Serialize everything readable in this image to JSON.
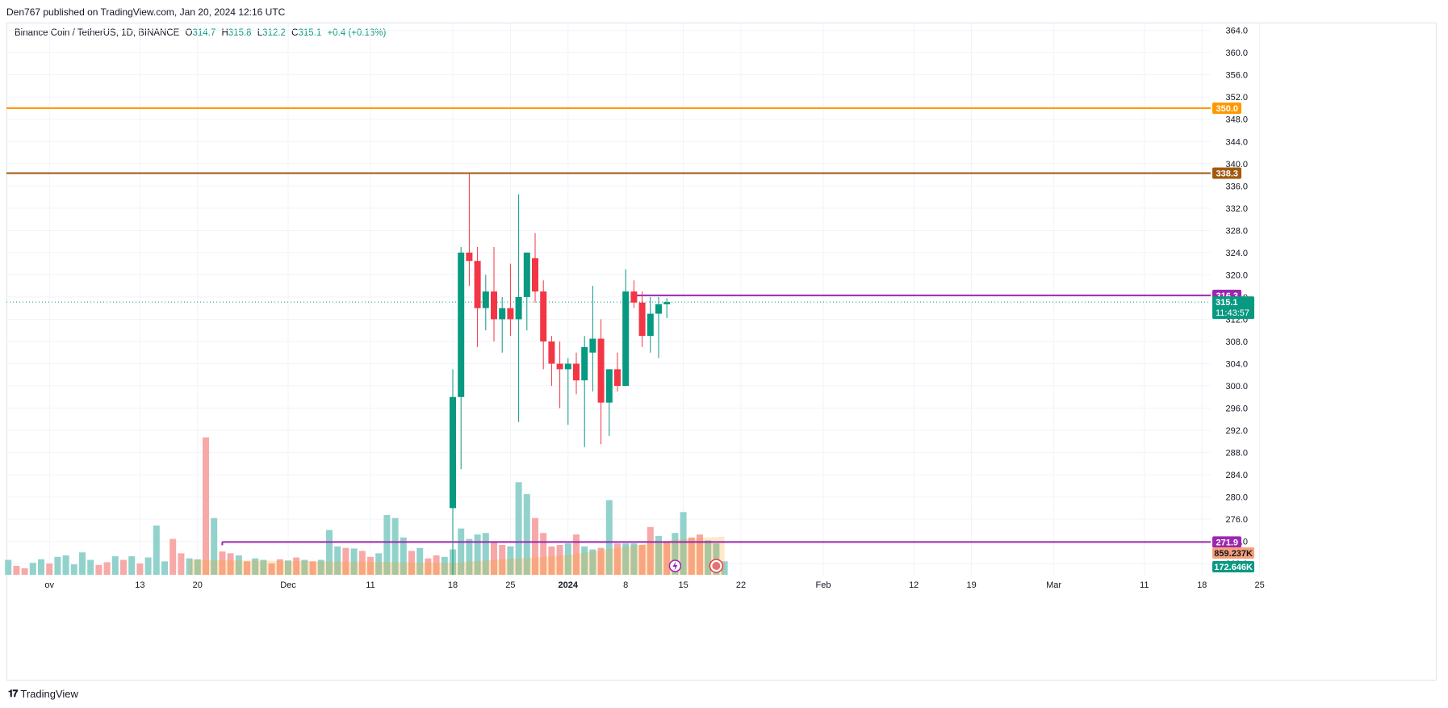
{
  "header": {
    "publisher_line": "Den767 published on TradingView.com, Jan 20, 2024 12:16 UTC"
  },
  "legend": {
    "symbol": "Binance Coin / TetherUS, 1D, BINANCE",
    "o_label": "O",
    "o_value": "314.7",
    "h_label": "H",
    "h_value": "315.8",
    "l_label": "L",
    "l_value": "312.2",
    "c_label": "C",
    "c_value": "315.1",
    "change": "+0.4 (+0.13%)"
  },
  "footer": {
    "logo_text": "TradingView"
  },
  "colors": {
    "up": "#089981",
    "down": "#f23645",
    "vol_up": "#92d2cc",
    "vol_down": "#f7a9a7",
    "orange": "#ff9800",
    "brown": "#a0590f",
    "purple": "#9c27b0",
    "grid": "#f0f3fa"
  },
  "chart_data": {
    "type": "candlestick",
    "symbol": "Binance Coin / TetherUS, 1D, BINANCE",
    "y_range": [
      266.0,
      365.4
    ],
    "y_ticks": [
      "364.0",
      "360.0",
      "356.0",
      "352.0",
      "348.0",
      "344.0",
      "340.0",
      "336.0",
      "332.0",
      "328.0",
      "324.0",
      "320.0",
      "316.0",
      "312.0",
      "308.0",
      "304.0",
      "300.0",
      "296.0",
      "292.0",
      "288.0",
      "284.0",
      "280.0",
      "276.0",
      "272.0",
      "268.0"
    ],
    "x_ticks": [
      "ov",
      "13",
      "20",
      "Dec",
      "11",
      "18",
      "25",
      "2024",
      "8",
      "15",
      "22",
      "Feb",
      "12",
      "19",
      "Mar",
      "11",
      "18",
      "25"
    ],
    "x_tick_days": [
      -49,
      -38,
      -31,
      -20,
      -10,
      0,
      7,
      14,
      21,
      28,
      35,
      45,
      56,
      63,
      73,
      84,
      91,
      98
    ],
    "candles": [
      {
        "date": "Dec 25",
        "o": 278.0,
        "h": 303.0,
        "l": 266.0,
        "c": 298.0
      },
      {
        "date": "Dec 26",
        "o": 298.0,
        "h": 325.0,
        "l": 285.0,
        "c": 324.0
      },
      {
        "date": "Dec 27",
        "o": 324.0,
        "h": 338.3,
        "l": 318.0,
        "c": 322.5
      },
      {
        "date": "Dec 28",
        "o": 322.5,
        "h": 325.0,
        "l": 307.0,
        "c": 314.0
      },
      {
        "date": "Dec 29",
        "o": 314.0,
        "h": 320.0,
        "l": 310.0,
        "c": 317.0
      },
      {
        "date": "Dec 30",
        "o": 317.0,
        "h": 325.0,
        "l": 308.0,
        "c": 312.0
      },
      {
        "date": "Dec 31",
        "o": 312.0,
        "h": 316.0,
        "l": 306.0,
        "c": 314.0
      },
      {
        "date": "Jan 1",
        "o": 314.0,
        "h": 322.0,
        "l": 309.0,
        "c": 312.0
      },
      {
        "date": "Jan 2",
        "o": 312.0,
        "h": 334.5,
        "l": 293.5,
        "c": 316.0
      },
      {
        "date": "Jan 3",
        "o": 316.0,
        "h": 324.0,
        "l": 310.0,
        "c": 324.0
      },
      {
        "date": "Jan 4",
        "o": 323.0,
        "h": 327.5,
        "l": 315.0,
        "c": 317.0
      },
      {
        "date": "Jan 5",
        "o": 317.0,
        "h": 319.0,
        "l": 303.0,
        "c": 308.0
      },
      {
        "date": "Jan 6",
        "o": 308.0,
        "h": 309.0,
        "l": 300.0,
        "c": 304.0
      },
      {
        "date": "Jan 7",
        "o": 304.0,
        "h": 308.0,
        "l": 296.0,
        "c": 303.0
      },
      {
        "date": "Jan 8",
        "o": 303.0,
        "h": 305.0,
        "l": 293.0,
        "c": 304.0
      },
      {
        "date": "Jan 9",
        "o": 304.0,
        "h": 306.0,
        "l": 298.5,
        "c": 301.0
      },
      {
        "date": "Jan 10",
        "o": 301.0,
        "h": 309.0,
        "l": 289.0,
        "c": 307.0
      },
      {
        "date": "Jan 11",
        "o": 306.0,
        "h": 318.0,
        "l": 299.0,
        "c": 308.5
      },
      {
        "date": "Jan 12",
        "o": 308.5,
        "h": 312.0,
        "l": 289.5,
        "c": 297.0
      },
      {
        "date": "Jan 13",
        "o": 297.0,
        "h": 303.0,
        "l": 291.0,
        "c": 303.0
      },
      {
        "date": "Jan 14",
        "o": 303.0,
        "h": 306.0,
        "l": 299.0,
        "c": 300.0
      },
      {
        "date": "Jan 15",
        "o": 300.0,
        "h": 321.0,
        "l": 300.0,
        "c": 317.0
      },
      {
        "date": "Jan 16",
        "o": 317.0,
        "h": 319.0,
        "l": 314.0,
        "c": 315.0
      },
      {
        "date": "Jan 17",
        "o": 315.0,
        "h": 317.0,
        "l": 307.0,
        "c": 309.0
      },
      {
        "date": "Jan 18",
        "o": 309.0,
        "h": 316.0,
        "l": 306.0,
        "c": 313.0
      },
      {
        "date": "Jan 19",
        "o": 313.0,
        "h": 316.0,
        "l": 305.0,
        "c": 314.7
      },
      {
        "date": "Jan 20",
        "o": 314.7,
        "h": 315.8,
        "l": 312.2,
        "c": 315.1
      }
    ],
    "volume": [
      {
        "day": -55,
        "up": true,
        "v": 0.28
      },
      {
        "day": -54,
        "up": true,
        "v": 0.5
      },
      {
        "day": -53,
        "up": false,
        "v": 0.3
      },
      {
        "day": -52,
        "up": false,
        "v": 0.22
      },
      {
        "day": -51,
        "up": true,
        "v": 0.4
      },
      {
        "day": -50,
        "up": true,
        "v": 0.52
      },
      {
        "day": -49,
        "up": false,
        "v": 0.38
      },
      {
        "day": -48,
        "up": true,
        "v": 0.6
      },
      {
        "day": -47,
        "up": true,
        "v": 0.65
      },
      {
        "day": -46,
        "up": true,
        "v": 0.35
      },
      {
        "day": -45,
        "up": true,
        "v": 0.75
      },
      {
        "day": -44,
        "up": true,
        "v": 0.5
      },
      {
        "day": -43,
        "up": false,
        "v": 0.33
      },
      {
        "day": -42,
        "up": false,
        "v": 0.42
      },
      {
        "day": -41,
        "up": true,
        "v": 0.62
      },
      {
        "day": -40,
        "up": false,
        "v": 0.5
      },
      {
        "day": -39,
        "up": true,
        "v": 0.62
      },
      {
        "day": -38,
        "up": false,
        "v": 0.38
      },
      {
        "day": -37,
        "up": true,
        "v": 0.58
      },
      {
        "day": -36,
        "up": true,
        "v": 1.65
      },
      {
        "day": -35,
        "up": true,
        "v": 0.45
      },
      {
        "day": -34,
        "up": false,
        "v": 1.2
      },
      {
        "day": -33,
        "up": false,
        "v": 0.72
      },
      {
        "day": -32,
        "up": true,
        "v": 0.55
      },
      {
        "day": -31,
        "up": true,
        "v": 0.52
      },
      {
        "day": -30,
        "up": false,
        "v": 4.6
      },
      {
        "day": -29,
        "up": true,
        "v": 1.9
      },
      {
        "day": -28,
        "up": false,
        "v": 0.78
      },
      {
        "day": -27,
        "up": false,
        "v": 0.72
      },
      {
        "day": -26,
        "up": true,
        "v": 0.65
      },
      {
        "day": -25,
        "up": false,
        "v": 0.45
      },
      {
        "day": -24,
        "up": true,
        "v": 0.55
      },
      {
        "day": -23,
        "up": true,
        "v": 0.5
      },
      {
        "day": -22,
        "up": false,
        "v": 0.38
      },
      {
        "day": -21,
        "up": false,
        "v": 0.52
      },
      {
        "day": -20,
        "up": true,
        "v": 0.48
      },
      {
        "day": -19,
        "up": false,
        "v": 0.58
      },
      {
        "day": -18,
        "up": true,
        "v": 0.5
      },
      {
        "day": -17,
        "up": false,
        "v": 0.45
      },
      {
        "day": -16,
        "up": true,
        "v": 0.5
      },
      {
        "day": -15,
        "up": true,
        "v": 1.5
      },
      {
        "day": -14,
        "up": true,
        "v": 0.95
      },
      {
        "day": -13,
        "up": false,
        "v": 0.9
      },
      {
        "day": -12,
        "up": true,
        "v": 0.88
      },
      {
        "day": -11,
        "up": false,
        "v": 0.8
      },
      {
        "day": -10,
        "up": false,
        "v": 0.6
      },
      {
        "day": -9,
        "up": true,
        "v": 0.72
      },
      {
        "day": -8,
        "up": true,
        "v": 2.0
      },
      {
        "day": -7,
        "up": true,
        "v": 1.9
      },
      {
        "day": -6,
        "up": true,
        "v": 1.25
      },
      {
        "day": -5,
        "up": false,
        "v": 0.8
      },
      {
        "day": -4,
        "up": true,
        "v": 0.9
      },
      {
        "day": -3,
        "up": false,
        "v": 0.55
      },
      {
        "day": -2,
        "up": false,
        "v": 0.65
      },
      {
        "day": -1,
        "up": true,
        "v": 0.6
      },
      {
        "day": 0,
        "up": true,
        "v": 0.85
      },
      {
        "day": 1,
        "up": true,
        "v": 1.55
      },
      {
        "day": 2,
        "up": true,
        "v": 1.2
      },
      {
        "day": 3,
        "up": true,
        "v": 1.35
      },
      {
        "day": 4,
        "up": true,
        "v": 1.4
      },
      {
        "day": 5,
        "up": false,
        "v": 1.1
      },
      {
        "day": 6,
        "up": false,
        "v": 1.0
      },
      {
        "day": 7,
        "up": true,
        "v": 0.95
      },
      {
        "day": 8,
        "up": true,
        "v": 3.1
      },
      {
        "day": 9,
        "up": true,
        "v": 2.7
      },
      {
        "day": 10,
        "up": false,
        "v": 1.9
      },
      {
        "day": 11,
        "up": false,
        "v": 1.4
      },
      {
        "day": 12,
        "up": false,
        "v": 0.95
      },
      {
        "day": 13,
        "up": false,
        "v": 1.0
      },
      {
        "day": 14,
        "up": true,
        "v": 1.05
      },
      {
        "day": 15,
        "up": false,
        "v": 1.35
      },
      {
        "day": 16,
        "up": true,
        "v": 0.95
      },
      {
        "day": 17,
        "up": true,
        "v": 0.85
      },
      {
        "day": 18,
        "up": false,
        "v": 0.9
      },
      {
        "day": 19,
        "up": true,
        "v": 2.5
      },
      {
        "day": 20,
        "up": false,
        "v": 1.05
      },
      {
        "day": 21,
        "up": true,
        "v": 1.05
      },
      {
        "day": 22,
        "up": true,
        "v": 1.05
      },
      {
        "day": 23,
        "up": false,
        "v": 1.0
      },
      {
        "day": 24,
        "up": false,
        "v": 1.6
      },
      {
        "day": 25,
        "up": true,
        "v": 1.3
      },
      {
        "day": 26,
        "up": false,
        "v": 1.1
      },
      {
        "day": 27,
        "up": true,
        "v": 1.4
      },
      {
        "day": 28,
        "up": true,
        "v": 2.1
      },
      {
        "day": 29,
        "up": false,
        "v": 1.25
      },
      {
        "day": 30,
        "up": false,
        "v": 1.35
      },
      {
        "day": 31,
        "up": true,
        "v": 1.15
      },
      {
        "day": 32,
        "up": true,
        "v": 1.05
      },
      {
        "day": 33,
        "up": true,
        "v": 0.45
      }
    ],
    "volume_ma": [
      0.4,
      0.42,
      0.44,
      0.46,
      0.48,
      0.5,
      0.52,
      0.54,
      0.55,
      0.56,
      0.58,
      0.6,
      0.62,
      0.64,
      0.66,
      0.7,
      0.74,
      0.78,
      0.82,
      0.86,
      0.9,
      0.94,
      0.98,
      1.02,
      1.06,
      1.1,
      1.14,
      1.18,
      1.2,
      1.22,
      1.24,
      1.25,
      1.26,
      1.28
    ],
    "volume_ma_start_day": 0,
    "levels": [
      {
        "price": 350.0,
        "color": "#ff9800",
        "label": "350.0",
        "x_from_day": null
      },
      {
        "price": 338.3,
        "color": "#a0590f",
        "label": "338.3",
        "x_from_day": null
      },
      {
        "price": 316.3,
        "color": "#9c27b0",
        "label": "316.3",
        "x_from_day": 22
      },
      {
        "price": 271.9,
        "color": "#9c27b0",
        "label": "271.9",
        "x_from_day": -28
      }
    ],
    "last_price": {
      "value": "315.1",
      "countdown": "11:43:57"
    },
    "volume_labels": [
      {
        "text": "859.237K",
        "bg": "#f7a07a",
        "color": "#131722"
      },
      {
        "text": "172.646K",
        "bg": "#089981",
        "color": "#ffffff"
      }
    ],
    "grid": true
  }
}
